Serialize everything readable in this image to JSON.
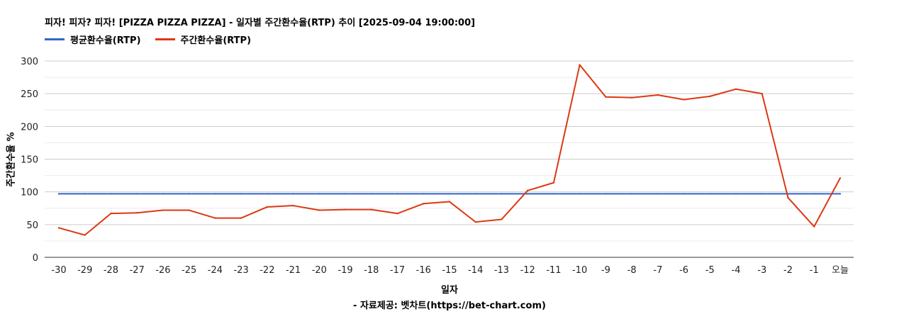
{
  "chart_data": {
    "type": "line",
    "title": "피자! 피자? 피자! [PIZZA PIZZA PIZZA] - 일자별 주간환수율(RTP) 추이 [2025-09-04 19:00:00]",
    "xlabel": "일자",
    "ylabel": "주간환수율 %",
    "source_note": "- 자료제공: 벳차트(https://bet-chart.com)",
    "ylim": [
      0,
      300
    ],
    "yticks": [
      0,
      50,
      100,
      150,
      200,
      250,
      300
    ],
    "grid": true,
    "legend_position": "top-left",
    "categories": [
      "-30",
      "-29",
      "-28",
      "-27",
      "-26",
      "-25",
      "-24",
      "-23",
      "-22",
      "-21",
      "-20",
      "-19",
      "-18",
      "-17",
      "-16",
      "-15",
      "-14",
      "-13",
      "-12",
      "-11",
      "-10",
      "-9",
      "-8",
      "-7",
      "-6",
      "-5",
      "-4",
      "-3",
      "-2",
      "-1",
      "오늘"
    ],
    "series": [
      {
        "name": "평균환수율(RTP)",
        "color": "#3366cc",
        "values": [
          97,
          97,
          97,
          97,
          97,
          97,
          97,
          97,
          97,
          97,
          97,
          97,
          97,
          97,
          97,
          97,
          97,
          97,
          97,
          97,
          97,
          97,
          97,
          97,
          97,
          97,
          97,
          97,
          97,
          97,
          97
        ]
      },
      {
        "name": "주간환수율(RTP)",
        "color": "#dc3912",
        "values": [
          45,
          34,
          67,
          68,
          72,
          72,
          60,
          60,
          77,
          79,
          72,
          73,
          73,
          67,
          82,
          85,
          54,
          58,
          102,
          114,
          294,
          245,
          244,
          248,
          241,
          246,
          257,
          250,
          91,
          47,
          121
        ]
      }
    ]
  }
}
